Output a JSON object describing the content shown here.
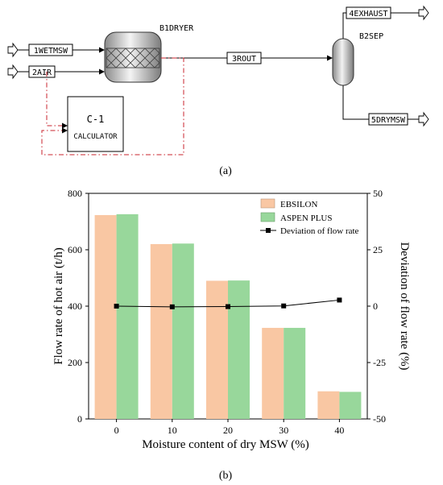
{
  "flowsheet": {
    "streams": {
      "wet_msw": "1WETMSW",
      "air": "2AIR",
      "rout": "3ROUT",
      "exhaust": "4EXHAUST",
      "dry_msw": "5DRYMSW"
    },
    "blocks": {
      "dryer": "B1DRYER",
      "separator": "B2SEP",
      "calculator_id": "C-1",
      "calculator_label": "CALCULATOR"
    },
    "caption": "(a)"
  },
  "chart_data": {
    "type": "bar",
    "caption": "(b)",
    "xlabel": "Moisture content of dry MSW (%)",
    "ylabel_left": "Flow rate of hot air (t/h)",
    "ylabel_right": "Deviation of flow rate (%)",
    "categories": [
      "0",
      "10",
      "20",
      "30",
      "40"
    ],
    "ylim_left": [
      0,
      800
    ],
    "yticks_left": [
      "0",
      "200",
      "400",
      "600",
      "800"
    ],
    "ylim_right": [
      -50,
      50
    ],
    "yticks_right": [
      "-50",
      "-25",
      "0",
      "25",
      "50"
    ],
    "legend_position": "top-right",
    "series": [
      {
        "name": "EBSILON",
        "type": "bar",
        "axis": "left",
        "color": "#F9C7A3",
        "values": [
          723,
          620,
          490,
          323,
          98
        ]
      },
      {
        "name": "ASPEN PLUS",
        "type": "bar",
        "axis": "left",
        "color": "#98D79B",
        "values": [
          726,
          622,
          491,
          323,
          96
        ]
      },
      {
        "name": "Deviation of flow rate",
        "type": "line",
        "axis": "right",
        "color": "#000000",
        "marker": "square",
        "values": [
          0,
          -0.3,
          -0.2,
          0.1,
          2.7
        ]
      }
    ]
  }
}
